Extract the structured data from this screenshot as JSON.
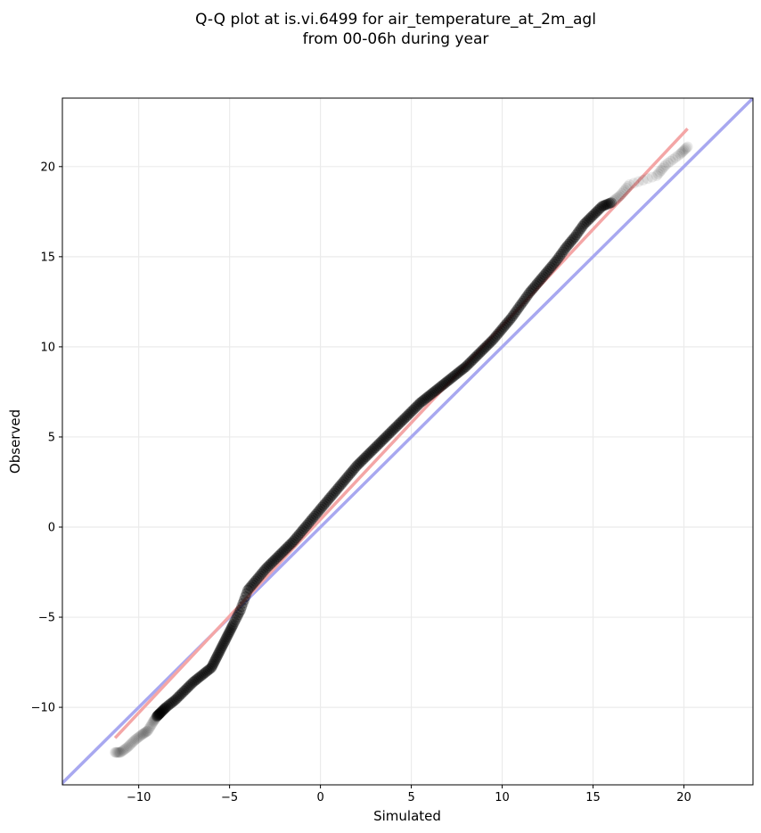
{
  "chart_data": {
    "type": "scatter",
    "title_lines": [
      "Q-Q plot at is.vi.6499 for air_temperature_at_2m_agl",
      "from 00-06h during year"
    ],
    "xlabel": "Simulated",
    "ylabel": "Observed",
    "xlim": [
      -14.2,
      23.8
    ],
    "ylim": [
      -14.3,
      23.8
    ],
    "xticks": [
      -10,
      -5,
      0,
      5,
      10,
      15,
      20
    ],
    "yticks": [
      -10,
      -5,
      0,
      5,
      10,
      15,
      20
    ],
    "xtick_labels": [
      "−10",
      "−5",
      "0",
      "5",
      "10",
      "15",
      "20"
    ],
    "ytick_labels": [
      "−10",
      "−5",
      "0",
      "5",
      "10",
      "15",
      "20"
    ],
    "grid": true,
    "legend": "none",
    "reference_line": {
      "slope": 1,
      "intercept": 0,
      "color": "#a8a8f0"
    },
    "fit_line": {
      "x": [
        -11.3,
        20.2
      ],
      "y": [
        -11.7,
        22.1
      ],
      "color": "#f4a6a6"
    },
    "quantiles": {
      "x": [
        -11.3,
        -11.0,
        -10.6,
        -10.2,
        -9.8,
        -9.5,
        -9.2,
        -9.0,
        -8.8,
        -8.5,
        -8.0,
        -7.5,
        -7.0,
        -6.5,
        -6.0,
        -5.7,
        -5.4,
        -5.1,
        -4.8,
        -4.4,
        -4.0,
        -3.5,
        -3.0,
        -2.5,
        -2.0,
        -1.5,
        -1.0,
        -0.5,
        0.0,
        0.5,
        1.0,
        1.5,
        2.0,
        2.5,
        3.0,
        3.5,
        4.0,
        4.5,
        5.0,
        5.5,
        6.0,
        6.5,
        7.0,
        7.5,
        8.0,
        8.5,
        9.0,
        9.5,
        10.0,
        10.5,
        11.0,
        11.5,
        12.0,
        12.5,
        13.0,
        13.5,
        14.0,
        14.5,
        15.0,
        15.5,
        16.0,
        16.5,
        17.0,
        18.5,
        19.0,
        19.8,
        20.2
      ],
      "y": [
        -12.5,
        -12.5,
        -12.2,
        -11.8,
        -11.5,
        -11.3,
        -10.8,
        -10.5,
        -10.3,
        -10.0,
        -9.6,
        -9.1,
        -8.6,
        -8.2,
        -7.8,
        -7.2,
        -6.6,
        -6.0,
        -5.4,
        -4.6,
        -3.5,
        -2.9,
        -2.3,
        -1.8,
        -1.3,
        -0.8,
        -0.2,
        0.4,
        1.0,
        1.6,
        2.2,
        2.8,
        3.4,
        3.9,
        4.4,
        4.9,
        5.4,
        5.9,
        6.4,
        6.9,
        7.3,
        7.7,
        8.1,
        8.5,
        8.9,
        9.4,
        9.9,
        10.4,
        11.0,
        11.6,
        12.3,
        13.0,
        13.6,
        14.2,
        14.8,
        15.5,
        16.1,
        16.8,
        17.3,
        17.8,
        18.0,
        18.4,
        19.0,
        19.5,
        20.1,
        20.7,
        21.1
      ]
    }
  }
}
